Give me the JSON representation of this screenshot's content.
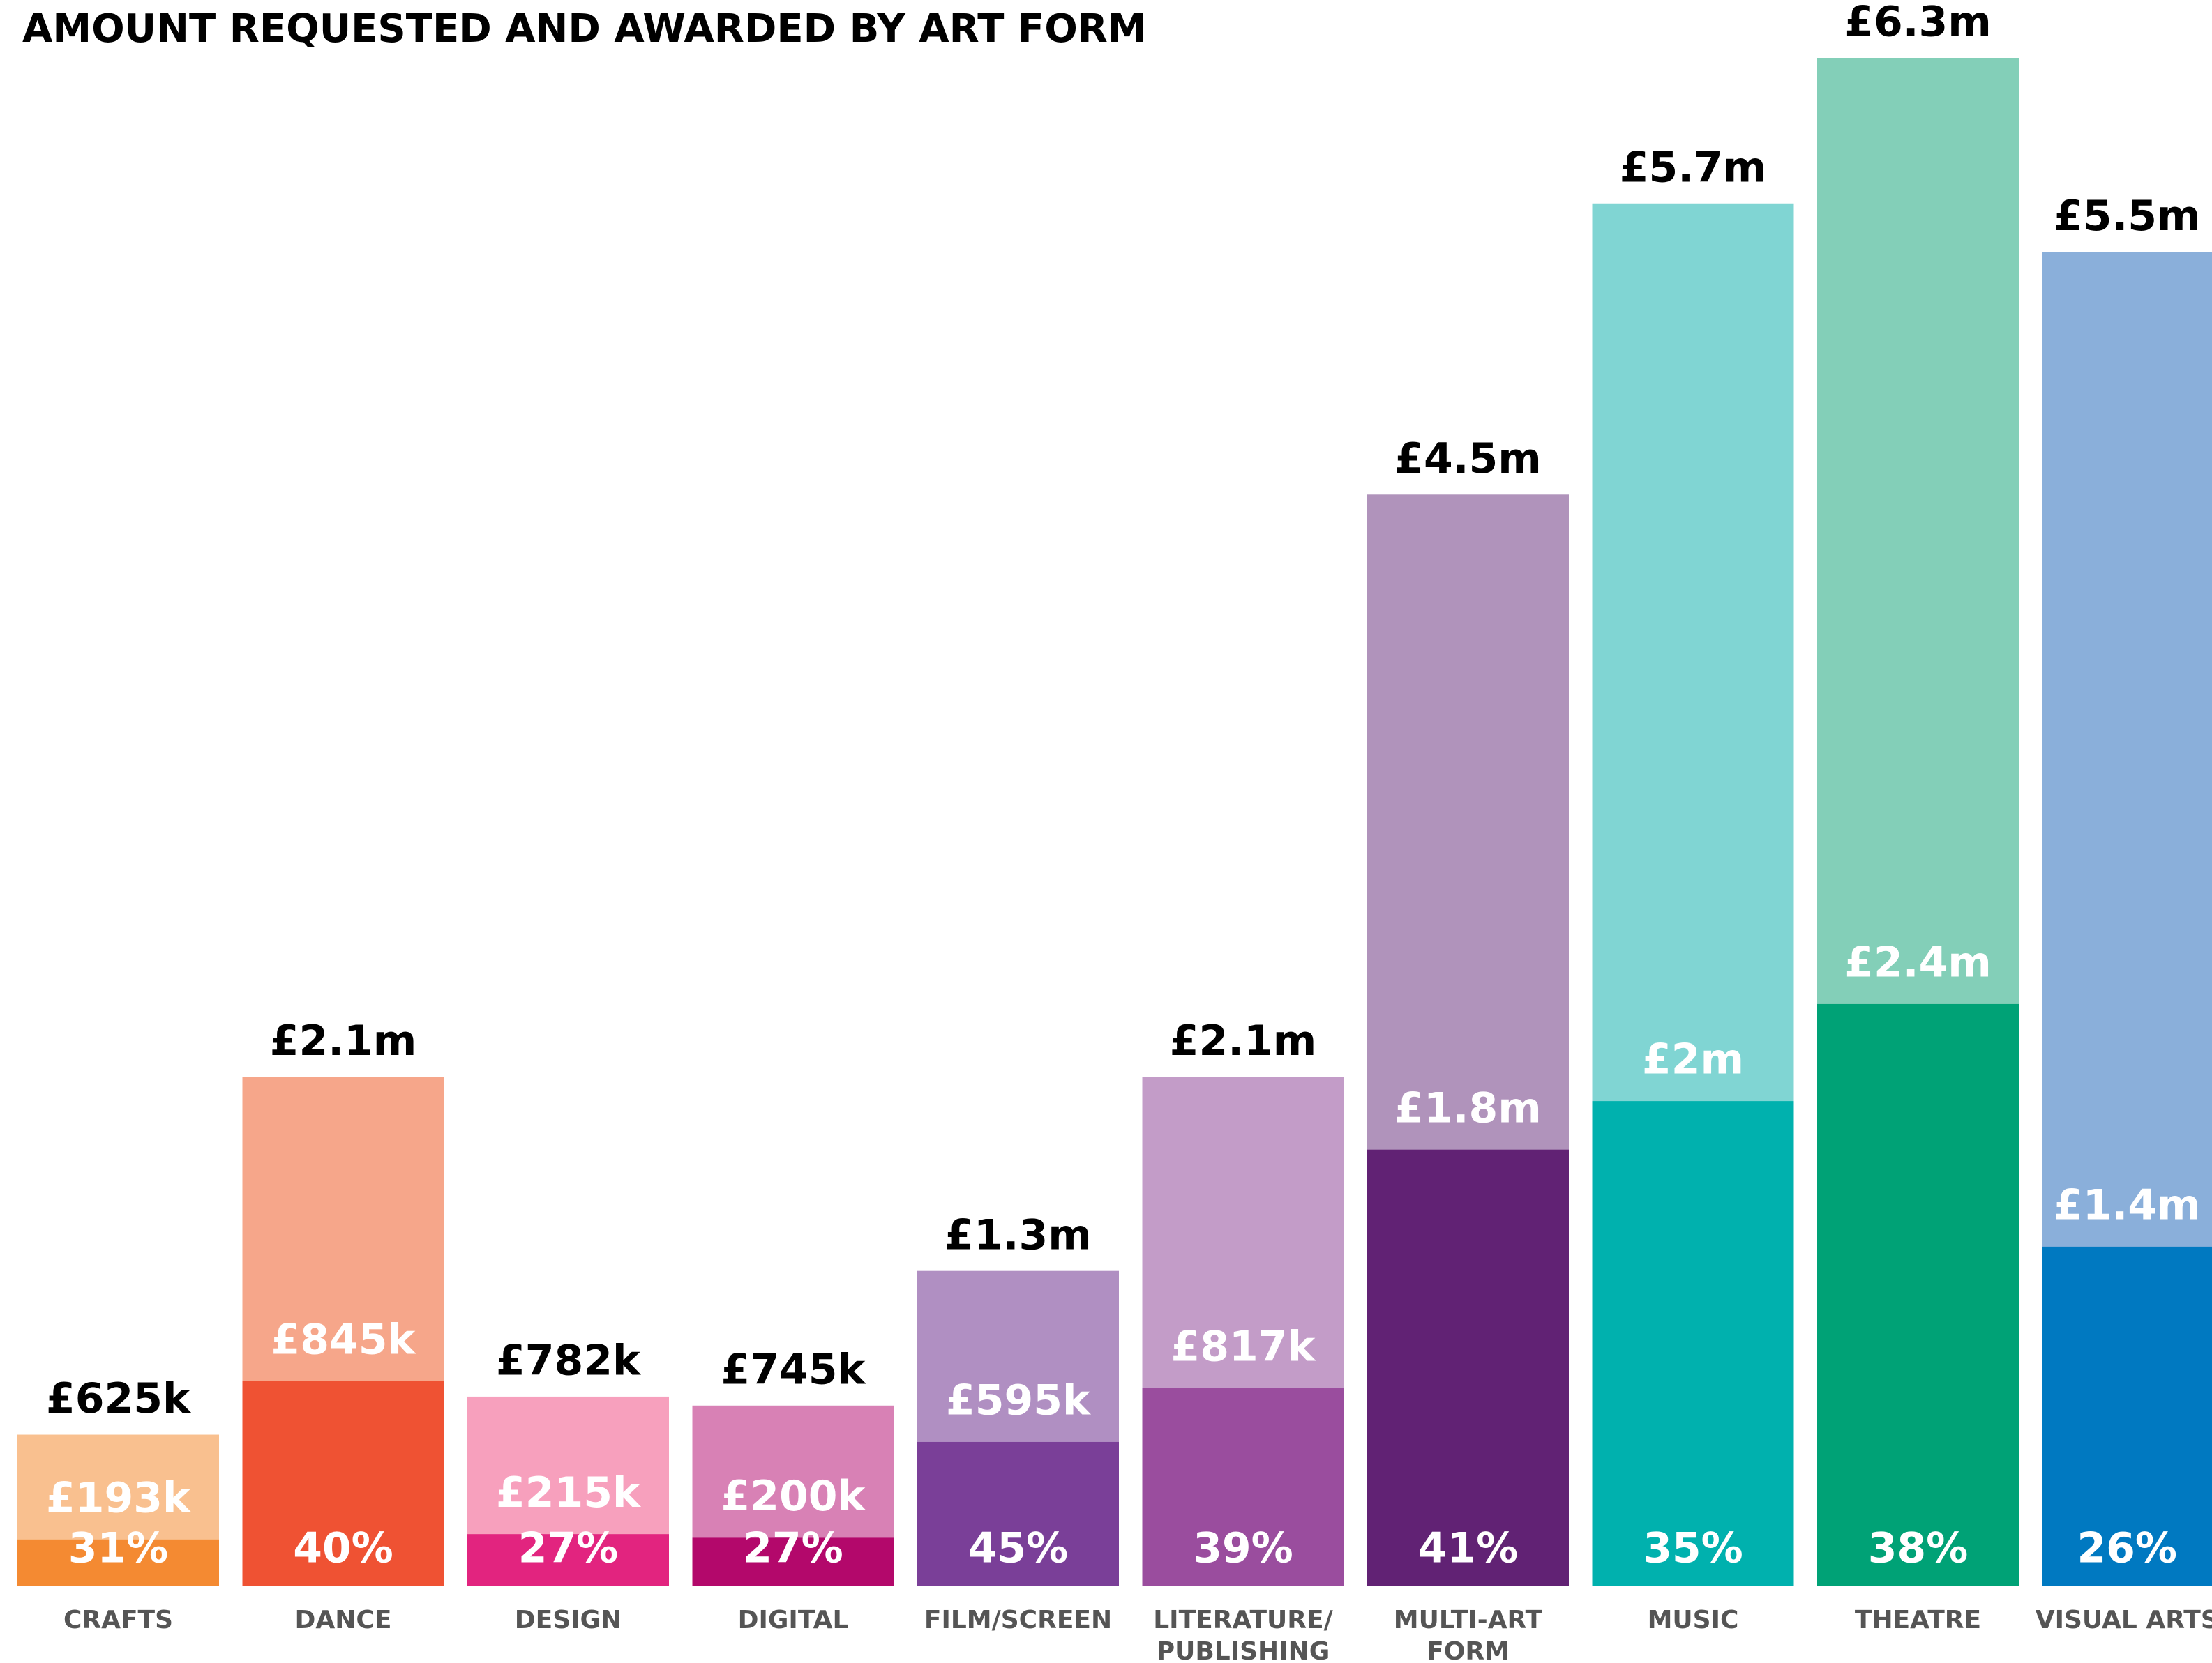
{
  "chart_data": {
    "type": "overlap-bar",
    "title": "AMOUNT REQUESTED AND AWARDED BY ART FORM",
    "categories": [
      "CRAFTS",
      "DANCE",
      "DESIGN",
      "DIGITAL",
      "FILM/SCREEN",
      [
        "LITERATURE/",
        "PUBLISHING"
      ],
      [
        "MULTI-ART",
        "FORM"
      ],
      "MUSIC",
      "THEATRE",
      "VISUAL ARTS"
    ],
    "series": [
      {
        "colors": [
          "#f9c08f",
          "#f6a68a",
          "#f7a0bd",
          "#d881b5",
          "#b08fc2",
          "#c39cc8",
          "#b093bb",
          "#80d5d3",
          "#83cfb8",
          "#8aafda"
        ],
        "values": [
          625000,
          2100000,
          782000,
          745000,
          1300000,
          2100000,
          4500000,
          5700000,
          6300000,
          5500000
        ],
        "value_labels": [
          "£625k",
          "£2.1m",
          "£782k",
          "£745k",
          "£1.3m",
          "£2.1m",
          "£4.5m",
          "£5.7m",
          "£6.3m",
          "£5.5m"
        ]
      },
      {
        "colors": [
          "#f48a32",
          "#ef5233",
          "#e2247f",
          "#b3086b",
          "#7a3f98",
          "#9a4d9e",
          "#612274",
          "#00b1ae",
          "#00a276",
          "#0079c1"
        ],
        "values": [
          193000,
          845000,
          215000,
          200000,
          595000,
          817000,
          1800000,
          2000000,
          2400000,
          1400000
        ],
        "value_labels": [
          "£193k",
          "£845k",
          "£215k",
          "£200k",
          "£595k",
          "£817k",
          "£1.8m",
          "£2m",
          "£2.4m",
          "£1.4m"
        ]
      }
    ],
    "percentages": {
      "values": [
        31,
        40,
        27,
        27,
        45,
        39,
        41,
        35,
        38,
        26
      ],
      "value_labels": [
        "31%",
        "40%",
        "27%",
        "27%",
        "45%",
        "39%",
        "41%",
        "35%",
        "38%",
        "26%"
      ]
    }
  }
}
